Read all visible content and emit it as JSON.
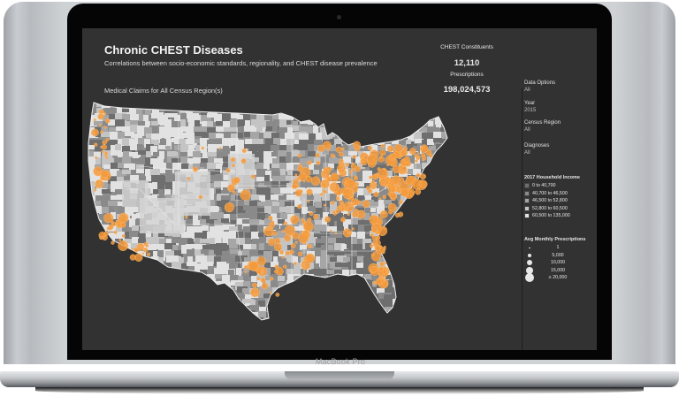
{
  "device": {
    "model_label": "MacBook Pro"
  },
  "dashboard": {
    "title": "Chronic CHEST Diseases",
    "subtitle": "Correlations between socio-economic standards, regionality, and CHEST disease prevalence",
    "map_caption": "Medical Claims for All Census Region(s)",
    "kpis": [
      {
        "label": "CHEST Constituents",
        "value": "12,110"
      },
      {
        "label": "Prescriptions",
        "value": "198,024,573"
      }
    ],
    "filters": [
      {
        "label": "Data Options",
        "value": "All"
      },
      {
        "label": "Year",
        "value": "2015"
      },
      {
        "label": "Census Region",
        "value": "All"
      },
      {
        "label": "Diagnoses",
        "value": "All"
      }
    ],
    "income_legend": {
      "title": "2017 Household Income",
      "items": [
        {
          "label": "0 to 40,700",
          "color": "#6e6e6e"
        },
        {
          "label": "40,700 to 46,500",
          "color": "#8a8a8a"
        },
        {
          "label": "46,500 to 52,800",
          "color": "#a6a6a6"
        },
        {
          "label": "52,800 to 60,500",
          "color": "#c4c4c4"
        },
        {
          "label": "60,500 to 135,000",
          "color": "#e2e2e2"
        }
      ]
    },
    "size_legend": {
      "title": "Avg Monthly Prescriptions",
      "items": [
        {
          "label": "1",
          "size": 1.5
        },
        {
          "label": "5,000",
          "size": 4
        },
        {
          "label": "10,000",
          "size": 6
        },
        {
          "label": "15,000",
          "size": 8
        },
        {
          "label": "≥ 20,000",
          "size": 10
        }
      ]
    },
    "colors": {
      "background": "#323232",
      "marker": "#f39a3c",
      "marker_stroke": "#ffb868",
      "state_border": "#f0f0f0"
    }
  }
}
